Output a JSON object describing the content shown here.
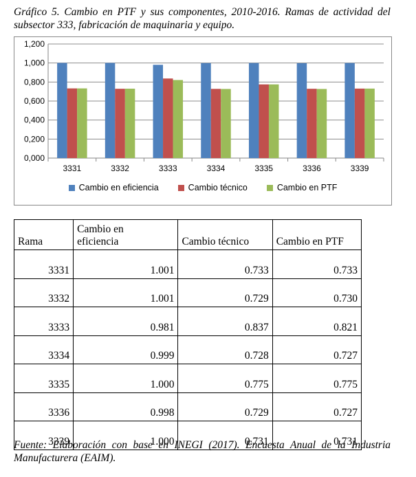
{
  "caption": "Gráfico 5. Cambio en PTF y sus componentes, 2010-2016. Ramas de actividad del subsector 333, fabricación de maquinaria y equipo.",
  "chart_data": {
    "type": "bar",
    "categories": [
      "3331",
      "3332",
      "3333",
      "3334",
      "3335",
      "3336",
      "3339"
    ],
    "series": [
      {
        "name": "Cambio en eficiencia",
        "color": "#4F81BD",
        "values": [
          1.001,
          1.001,
          0.981,
          0.999,
          1.0,
          0.998,
          1.0
        ]
      },
      {
        "name": "Cambio técnico",
        "color": "#C0504D",
        "values": [
          0.733,
          0.729,
          0.837,
          0.728,
          0.775,
          0.729,
          0.731
        ]
      },
      {
        "name": "Cambio en PTF",
        "color": "#9BBB59",
        "values": [
          0.733,
          0.73,
          0.821,
          0.727,
          0.775,
          0.727,
          0.731
        ]
      }
    ],
    "yticks": [
      "0,000",
      "0,200",
      "0,400",
      "0,600",
      "0,800",
      "1,000",
      "1,200"
    ],
    "ylim": [
      0,
      1.2
    ],
    "grid": true,
    "legend_position": "bottom"
  },
  "table": {
    "headers": {
      "rama": "Rama",
      "eficiencia_line1": "Cambio en",
      "eficiencia_line2": "eficiencia",
      "tecnico": "Cambio técnico",
      "ptf": "Cambio en PTF"
    },
    "rows": [
      [
        "3331",
        "1.001",
        "0.733",
        "0.733"
      ],
      [
        "3332",
        "1.001",
        "0.729",
        "0.730"
      ],
      [
        "3333",
        "0.981",
        "0.837",
        "0.821"
      ],
      [
        "3334",
        "0.999",
        "0.728",
        "0.727"
      ],
      [
        "3335",
        "1.000",
        "0.775",
        "0.775"
      ],
      [
        "3336",
        "0.998",
        "0.729",
        "0.727"
      ],
      [
        "3339",
        "1.000",
        "0.731",
        "0.731"
      ]
    ]
  },
  "source": "Fuente: Elaboración con base en INEGI (2017). Encuesta Anual de la Industria Manufacturera (EAIM)."
}
